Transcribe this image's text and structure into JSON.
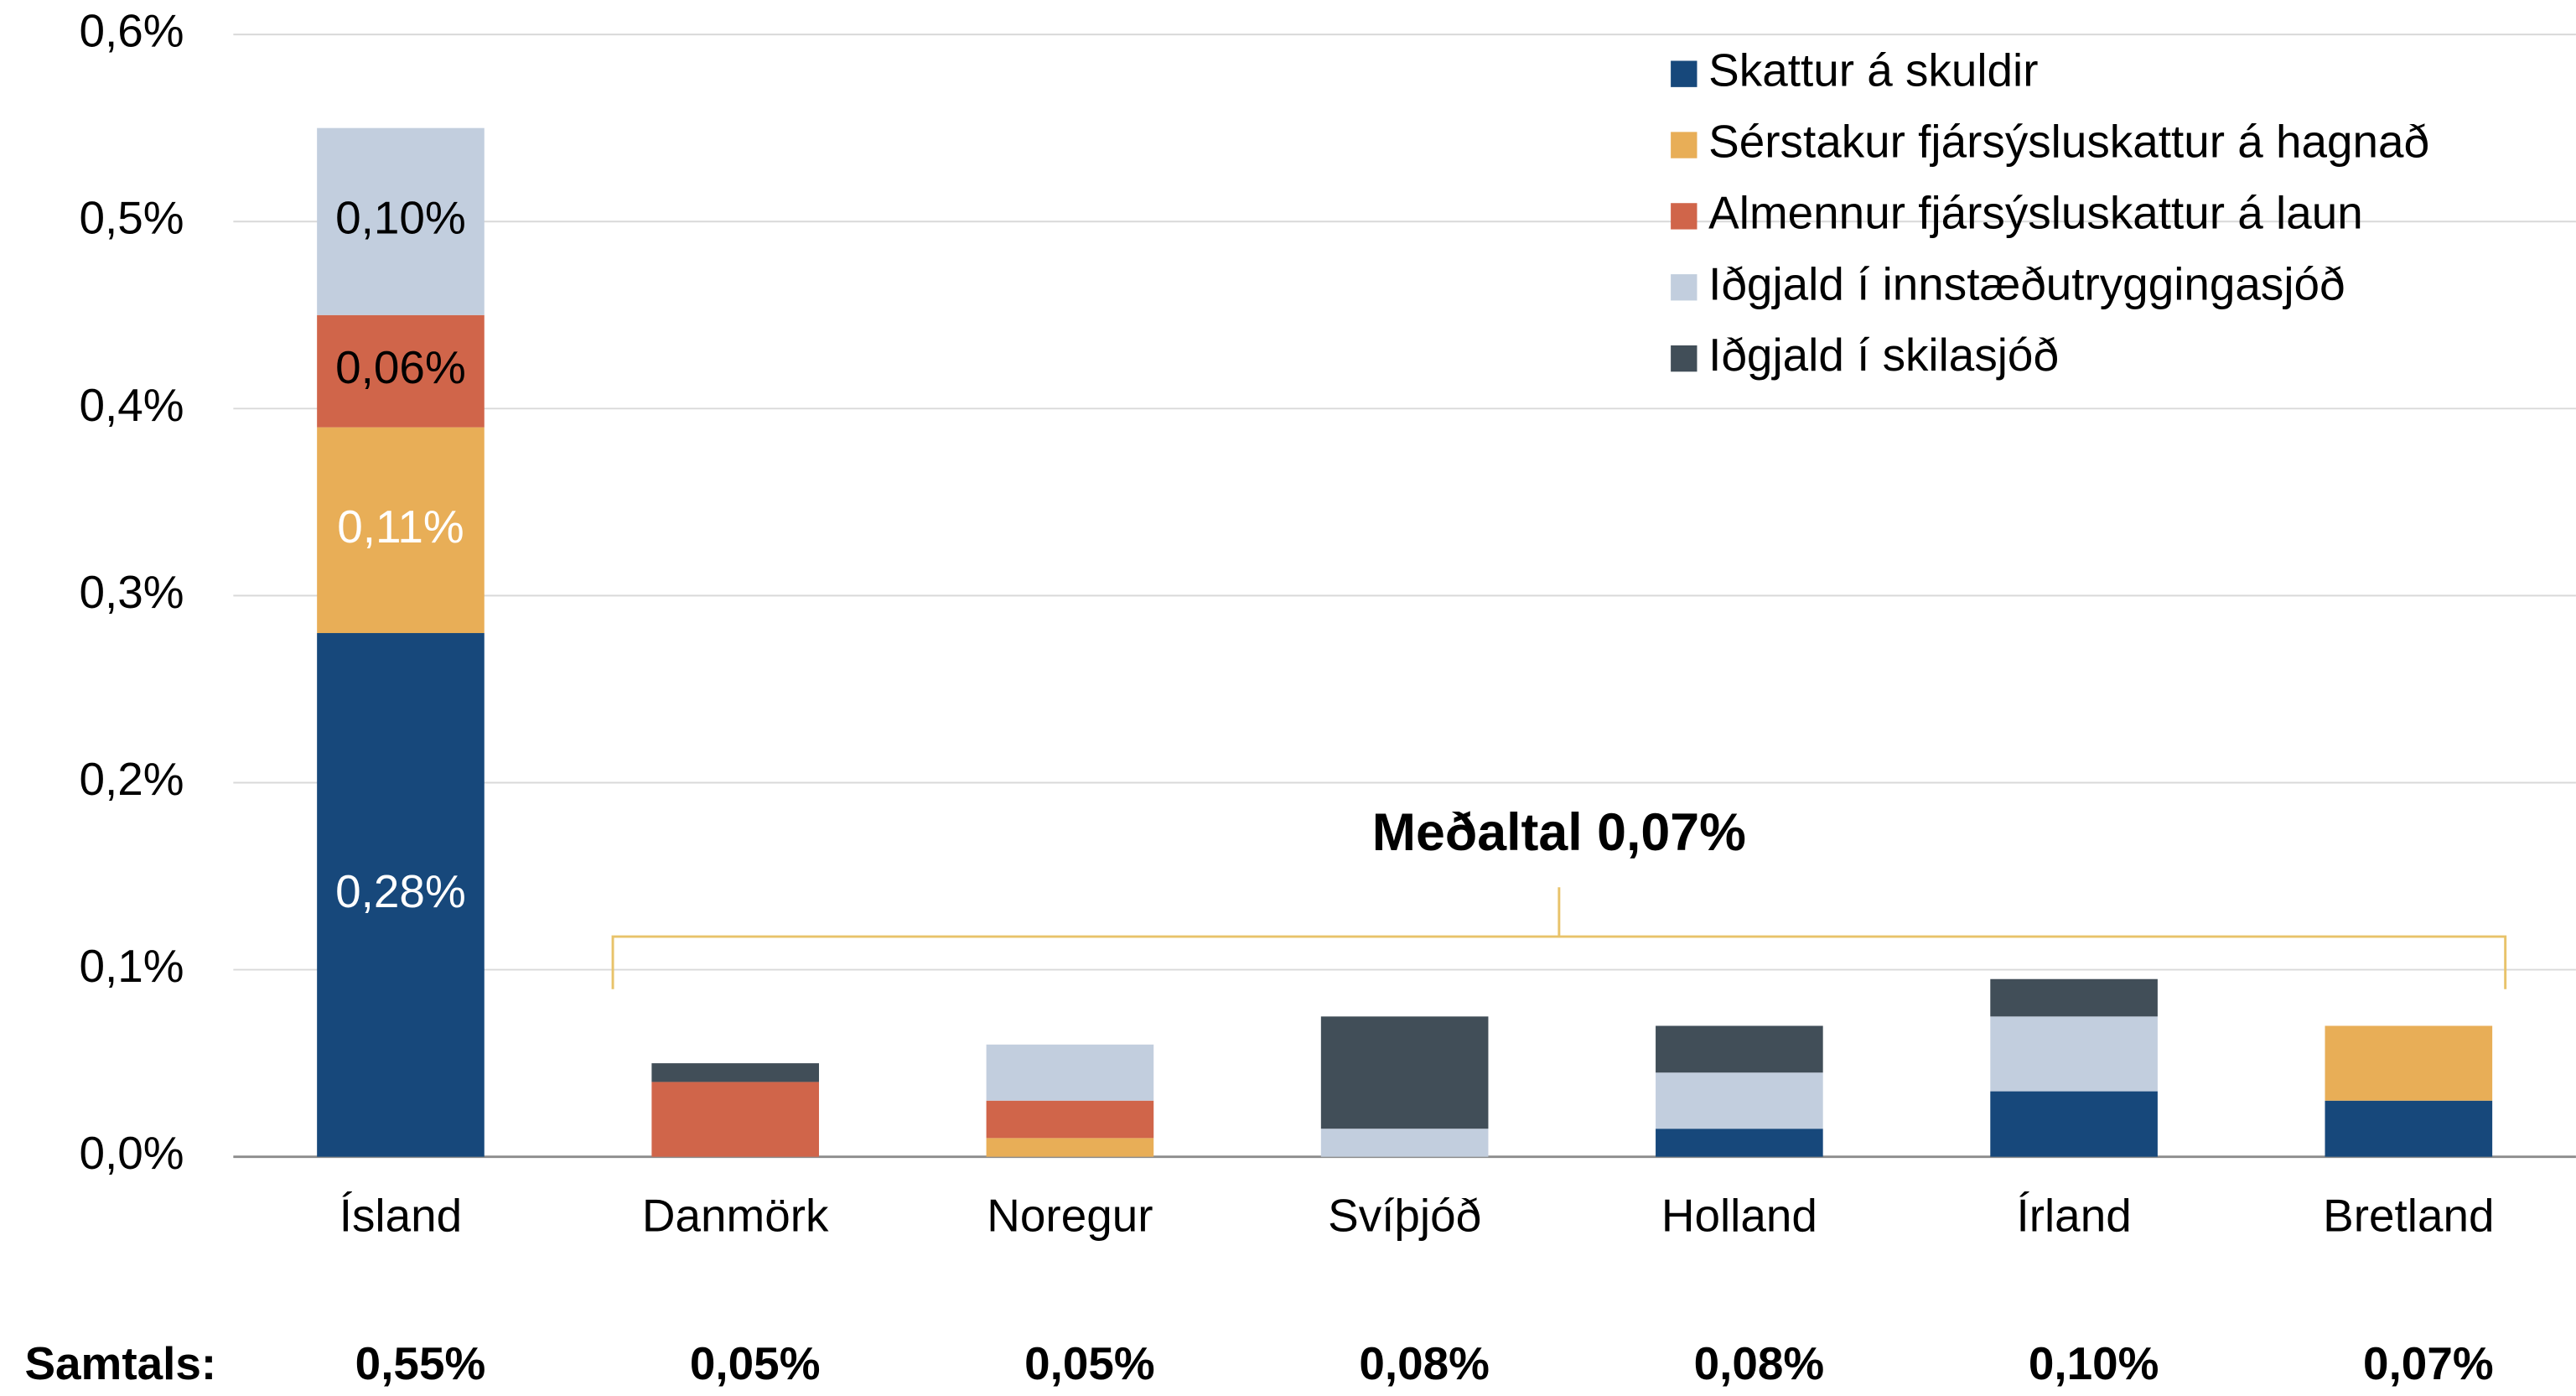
{
  "chart_data": {
    "type": "stacked_bar",
    "categories": [
      "Ísland",
      "Danmörk",
      "Noregur",
      "Svíþjóð",
      "Holland",
      "Írland",
      "Bretland"
    ],
    "series": [
      {
        "name": "Skattur á skuldir",
        "color": "#17487b",
        "label_color": "#ffffff",
        "values": [
          0.28,
          0,
          0,
          0,
          0.015,
          0.035,
          0.03
        ],
        "value_labels": [
          "0,28%",
          null,
          null,
          null,
          null,
          null,
          null
        ]
      },
      {
        "name": "Sérstakur fjársýsluskattur á hagnað",
        "color": "#e8ae57",
        "label_color": "#ffffff",
        "values": [
          0.11,
          0,
          0.01,
          0,
          0,
          0,
          0.04
        ],
        "value_labels": [
          "0,11%",
          null,
          null,
          null,
          null,
          null,
          null
        ]
      },
      {
        "name": "Almennur fjársýsluskattur á laun",
        "color": "#d0654a",
        "label_color": "#000000",
        "values": [
          0.06,
          0.04,
          0.02,
          0,
          0,
          0,
          0
        ],
        "value_labels": [
          "0,06%",
          null,
          null,
          null,
          null,
          null,
          null
        ]
      },
      {
        "name": "Iðgjald í innstæðutryggingasjóð",
        "color": "#c2cede",
        "label_color": "#000000",
        "values": [
          0.1,
          0,
          0.03,
          0.015,
          0.03,
          0.04,
          0
        ],
        "value_labels": [
          "0,10%",
          null,
          null,
          null,
          null,
          null,
          null
        ]
      },
      {
        "name": "Iðgjald í skilasjóð",
        "color": "#414e58",
        "label_color": "#ffffff",
        "values": [
          0,
          0.01,
          0,
          0.06,
          0.025,
          0.02,
          0
        ]
      }
    ],
    "ylim": [
      0,
      0.6
    ],
    "yticks": [
      {
        "value": 0,
        "label": "0,0%"
      },
      {
        "value": 0.1,
        "label": "0,1%"
      },
      {
        "value": 0.2,
        "label": "0,2%"
      },
      {
        "value": 0.3,
        "label": "0,3%"
      },
      {
        "value": 0.4,
        "label": "0,4%"
      },
      {
        "value": 0.5,
        "label": "0,5%"
      },
      {
        "value": 0.6,
        "label": "0,6%"
      }
    ],
    "grid": true,
    "legend": "upper right",
    "annotation": "Meðaltal 0,07%",
    "totals_label": "Samtals:",
    "totals": [
      "0,55%",
      "0,05%",
      "0,05%",
      "0,08%",
      "0,08%",
      "0,10%",
      "0,07%"
    ]
  }
}
